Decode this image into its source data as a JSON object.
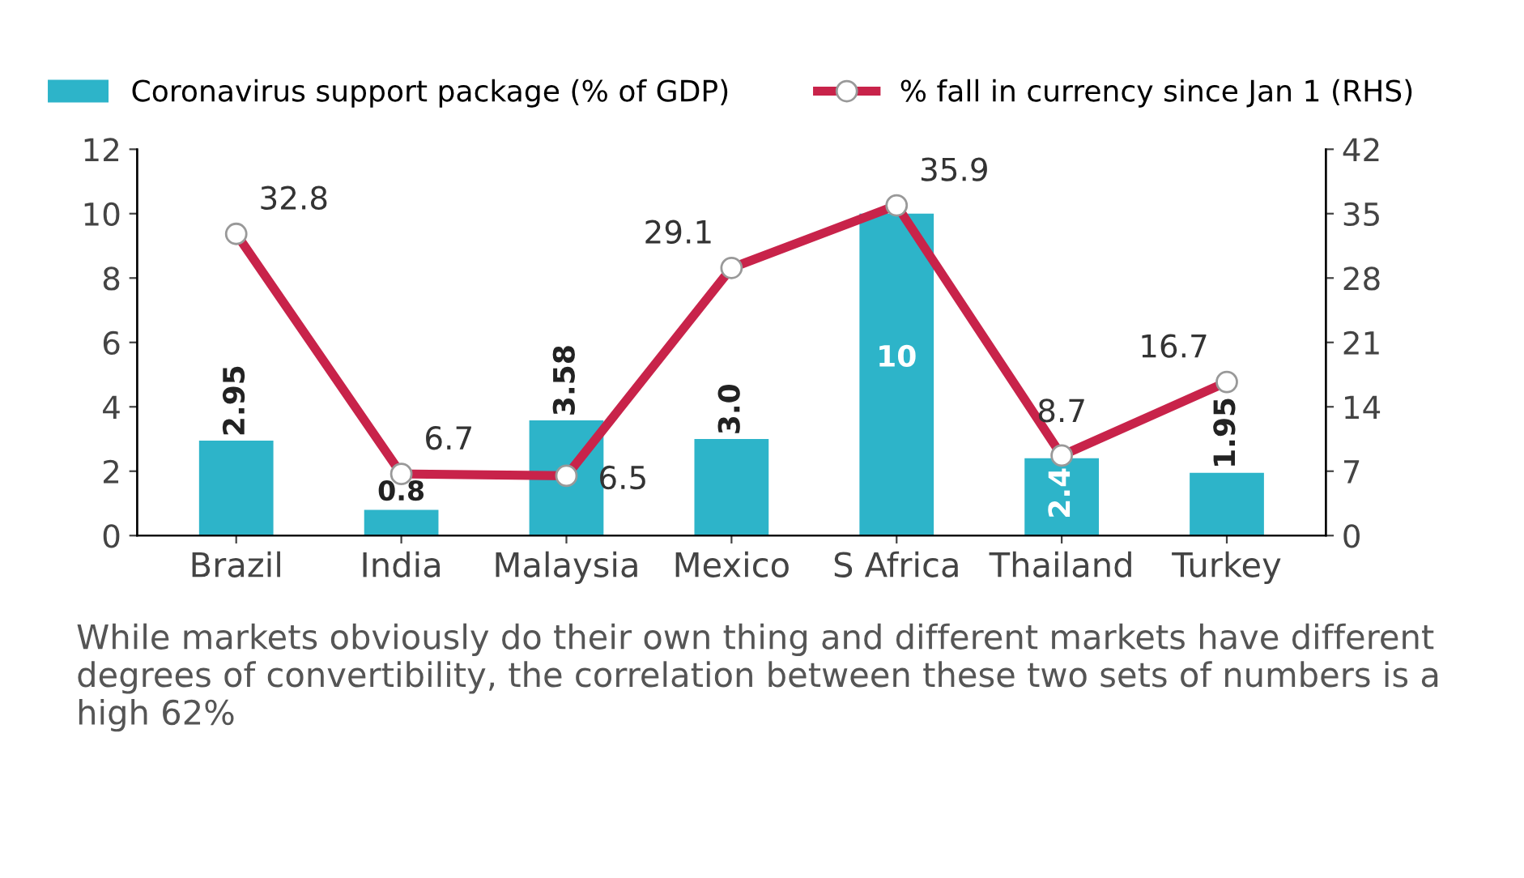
{
  "chart_data": {
    "type": "bar",
    "categories": [
      "Brazil",
      "India",
      "Malaysia",
      "Mexico",
      "S Africa",
      "Thailand",
      "Turkey"
    ],
    "series": [
      {
        "name": "Coronavirus support package (% of GDP)",
        "color": "#2db4c9",
        "values": [
          2.95,
          0.8,
          3.58,
          3.0,
          10,
          2.4,
          1.95
        ],
        "value_labels": [
          "2.95",
          "0.8",
          "3.58",
          "3.0",
          "10",
          "2.4",
          "1.95"
        ]
      },
      {
        "name": "% fall in currency since Jan 1 (RHS)",
        "type": "line",
        "axis": "y2",
        "color": "#c8234a",
        "marker": "circle",
        "values": [
          32.8,
          6.7,
          6.5,
          29.1,
          35.9,
          8.7,
          16.7
        ],
        "value_labels": [
          "32.8",
          "6.7",
          "6.5",
          "29.1",
          "35.9",
          "8.7",
          "16.7"
        ]
      }
    ],
    "ylim": [
      0,
      12
    ],
    "yticks": [
      0,
      2,
      4,
      6,
      8,
      10,
      12
    ],
    "y2lim": [
      0,
      42
    ],
    "y2ticks": [
      0,
      7,
      14,
      21,
      28,
      35,
      42
    ],
    "grid": false,
    "legend": "top",
    "annotations": [
      "While markets obviously do their own thing and different markets have different degrees of convertibility, the correlation between these two sets of numbers is a high 62%"
    ]
  }
}
